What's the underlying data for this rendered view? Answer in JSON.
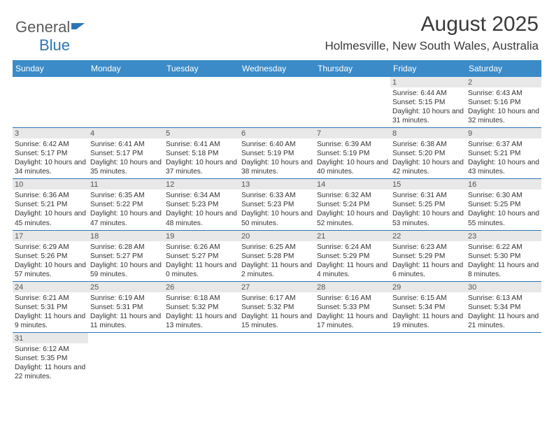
{
  "logo": {
    "text1": "General",
    "text2": "Blue",
    "accent_color": "#2e75b6"
  },
  "title": "August 2025",
  "location": "Holmesville, New South Wales, Australia",
  "colors": {
    "header_bg": "#3b8bc8",
    "header_text": "#ffffff",
    "daynum_bg": "#e8e8e8",
    "border": "#2e75b6",
    "text": "#333333",
    "background": "#ffffff"
  },
  "fonts": {
    "title_size": 30,
    "location_size": 17,
    "dayhead_size": 12,
    "daynum_size": 11,
    "cell_size": 10.2
  },
  "day_headers": [
    "Sunday",
    "Monday",
    "Tuesday",
    "Wednesday",
    "Thursday",
    "Friday",
    "Saturday"
  ],
  "weeks": [
    [
      {
        "day": "",
        "lines": []
      },
      {
        "day": "",
        "lines": []
      },
      {
        "day": "",
        "lines": []
      },
      {
        "day": "",
        "lines": []
      },
      {
        "day": "",
        "lines": []
      },
      {
        "day": "1",
        "lines": [
          "Sunrise: 6:44 AM",
          "Sunset: 5:15 PM",
          "Daylight: 10 hours and 31 minutes."
        ]
      },
      {
        "day": "2",
        "lines": [
          "Sunrise: 6:43 AM",
          "Sunset: 5:16 PM",
          "Daylight: 10 hours and 32 minutes."
        ]
      }
    ],
    [
      {
        "day": "3",
        "lines": [
          "Sunrise: 6:42 AM",
          "Sunset: 5:17 PM",
          "Daylight: 10 hours and 34 minutes."
        ]
      },
      {
        "day": "4",
        "lines": [
          "Sunrise: 6:41 AM",
          "Sunset: 5:17 PM",
          "Daylight: 10 hours and 35 minutes."
        ]
      },
      {
        "day": "5",
        "lines": [
          "Sunrise: 6:41 AM",
          "Sunset: 5:18 PM",
          "Daylight: 10 hours and 37 minutes."
        ]
      },
      {
        "day": "6",
        "lines": [
          "Sunrise: 6:40 AM",
          "Sunset: 5:19 PM",
          "Daylight: 10 hours and 38 minutes."
        ]
      },
      {
        "day": "7",
        "lines": [
          "Sunrise: 6:39 AM",
          "Sunset: 5:19 PM",
          "Daylight: 10 hours and 40 minutes."
        ]
      },
      {
        "day": "8",
        "lines": [
          "Sunrise: 6:38 AM",
          "Sunset: 5:20 PM",
          "Daylight: 10 hours and 42 minutes."
        ]
      },
      {
        "day": "9",
        "lines": [
          "Sunrise: 6:37 AM",
          "Sunset: 5:21 PM",
          "Daylight: 10 hours and 43 minutes."
        ]
      }
    ],
    [
      {
        "day": "10",
        "lines": [
          "Sunrise: 6:36 AM",
          "Sunset: 5:21 PM",
          "Daylight: 10 hours and 45 minutes."
        ]
      },
      {
        "day": "11",
        "lines": [
          "Sunrise: 6:35 AM",
          "Sunset: 5:22 PM",
          "Daylight: 10 hours and 47 minutes."
        ]
      },
      {
        "day": "12",
        "lines": [
          "Sunrise: 6:34 AM",
          "Sunset: 5:23 PM",
          "Daylight: 10 hours and 48 minutes."
        ]
      },
      {
        "day": "13",
        "lines": [
          "Sunrise: 6:33 AM",
          "Sunset: 5:23 PM",
          "Daylight: 10 hours and 50 minutes."
        ]
      },
      {
        "day": "14",
        "lines": [
          "Sunrise: 6:32 AM",
          "Sunset: 5:24 PM",
          "Daylight: 10 hours and 52 minutes."
        ]
      },
      {
        "day": "15",
        "lines": [
          "Sunrise: 6:31 AM",
          "Sunset: 5:25 PM",
          "Daylight: 10 hours and 53 minutes."
        ]
      },
      {
        "day": "16",
        "lines": [
          "Sunrise: 6:30 AM",
          "Sunset: 5:25 PM",
          "Daylight: 10 hours and 55 minutes."
        ]
      }
    ],
    [
      {
        "day": "17",
        "lines": [
          "Sunrise: 6:29 AM",
          "Sunset: 5:26 PM",
          "Daylight: 10 hours and 57 minutes."
        ]
      },
      {
        "day": "18",
        "lines": [
          "Sunrise: 6:28 AM",
          "Sunset: 5:27 PM",
          "Daylight: 10 hours and 59 minutes."
        ]
      },
      {
        "day": "19",
        "lines": [
          "Sunrise: 6:26 AM",
          "Sunset: 5:27 PM",
          "Daylight: 11 hours and 0 minutes."
        ]
      },
      {
        "day": "20",
        "lines": [
          "Sunrise: 6:25 AM",
          "Sunset: 5:28 PM",
          "Daylight: 11 hours and 2 minutes."
        ]
      },
      {
        "day": "21",
        "lines": [
          "Sunrise: 6:24 AM",
          "Sunset: 5:29 PM",
          "Daylight: 11 hours and 4 minutes."
        ]
      },
      {
        "day": "22",
        "lines": [
          "Sunrise: 6:23 AM",
          "Sunset: 5:29 PM",
          "Daylight: 11 hours and 6 minutes."
        ]
      },
      {
        "day": "23",
        "lines": [
          "Sunrise: 6:22 AM",
          "Sunset: 5:30 PM",
          "Daylight: 11 hours and 8 minutes."
        ]
      }
    ],
    [
      {
        "day": "24",
        "lines": [
          "Sunrise: 6:21 AM",
          "Sunset: 5:31 PM",
          "Daylight: 11 hours and 9 minutes."
        ]
      },
      {
        "day": "25",
        "lines": [
          "Sunrise: 6:19 AM",
          "Sunset: 5:31 PM",
          "Daylight: 11 hours and 11 minutes."
        ]
      },
      {
        "day": "26",
        "lines": [
          "Sunrise: 6:18 AM",
          "Sunset: 5:32 PM",
          "Daylight: 11 hours and 13 minutes."
        ]
      },
      {
        "day": "27",
        "lines": [
          "Sunrise: 6:17 AM",
          "Sunset: 5:32 PM",
          "Daylight: 11 hours and 15 minutes."
        ]
      },
      {
        "day": "28",
        "lines": [
          "Sunrise: 6:16 AM",
          "Sunset: 5:33 PM",
          "Daylight: 11 hours and 17 minutes."
        ]
      },
      {
        "day": "29",
        "lines": [
          "Sunrise: 6:15 AM",
          "Sunset: 5:34 PM",
          "Daylight: 11 hours and 19 minutes."
        ]
      },
      {
        "day": "30",
        "lines": [
          "Sunrise: 6:13 AM",
          "Sunset: 5:34 PM",
          "Daylight: 11 hours and 21 minutes."
        ]
      }
    ],
    [
      {
        "day": "31",
        "lines": [
          "Sunrise: 6:12 AM",
          "Sunset: 5:35 PM",
          "Daylight: 11 hours and 22 minutes."
        ]
      },
      {
        "day": "",
        "lines": []
      },
      {
        "day": "",
        "lines": []
      },
      {
        "day": "",
        "lines": []
      },
      {
        "day": "",
        "lines": []
      },
      {
        "day": "",
        "lines": []
      },
      {
        "day": "",
        "lines": []
      }
    ]
  ]
}
